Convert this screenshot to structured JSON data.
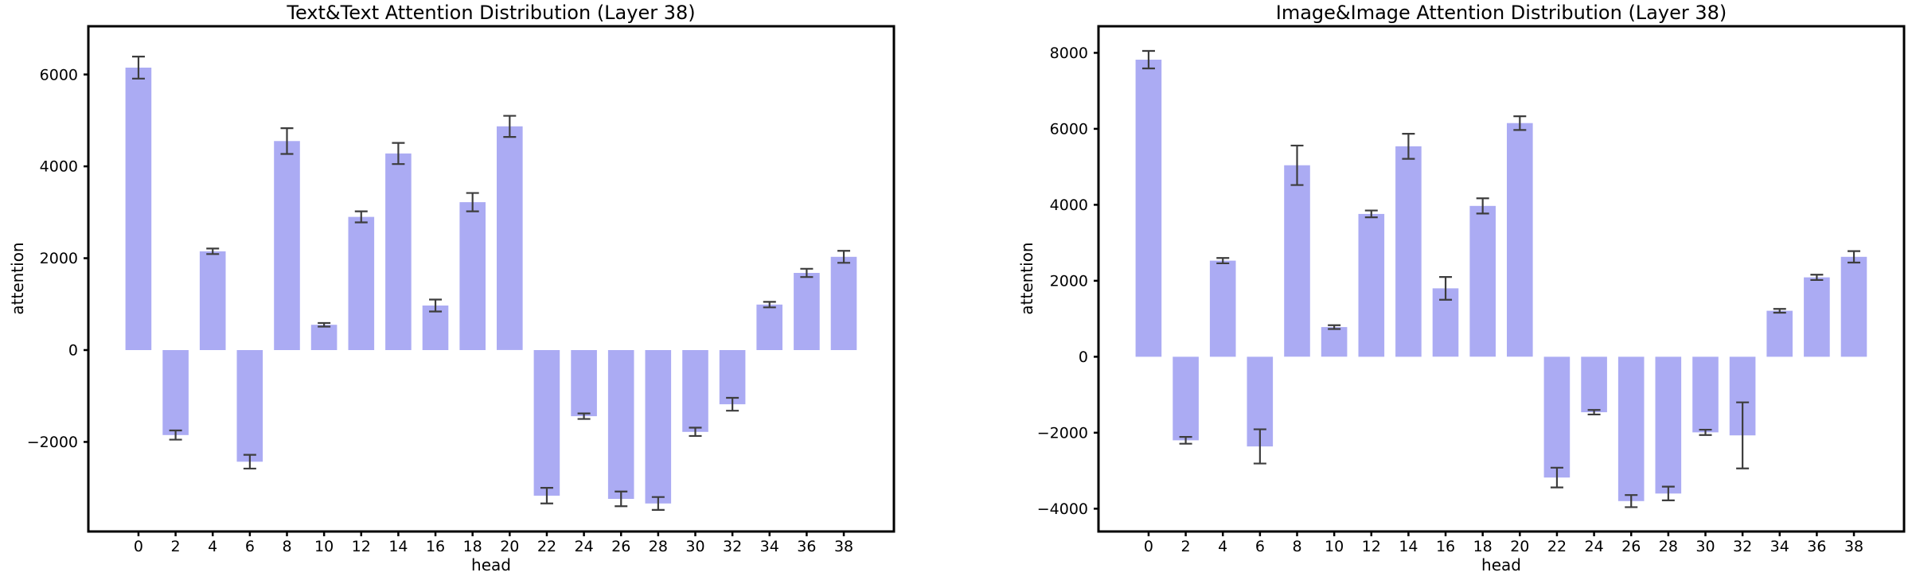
{
  "figure": {
    "background": "#ffffff",
    "text_color": "#000000"
  },
  "chart_data": [
    {
      "type": "bar",
      "title": "Text&Text Attention Distribution (Layer 38)",
      "xlabel": "head",
      "ylabel": "attention",
      "categories": [
        0,
        2,
        4,
        6,
        8,
        10,
        12,
        14,
        16,
        18,
        20,
        22,
        24,
        26,
        28,
        30,
        32,
        34,
        36,
        38
      ],
      "values": [
        6150,
        -1850,
        2150,
        -2430,
        4550,
        550,
        2900,
        4280,
        970,
        3220,
        4870,
        -3170,
        -1440,
        -3240,
        -3340,
        -1780,
        -1180,
        990,
        1680,
        2030
      ],
      "errors": [
        240,
        100,
        60,
        150,
        280,
        40,
        120,
        230,
        130,
        200,
        230,
        170,
        60,
        160,
        140,
        90,
        140,
        60,
        90,
        130
      ],
      "ylim": [
        -3950,
        7050
      ],
      "yticks": [
        -2000,
        0,
        2000,
        4000,
        6000
      ],
      "xlim": [
        -2.7,
        40.7
      ],
      "bar_width_units": 1.4,
      "bar_color": "#ababf3",
      "error_color": "#3d3d3d",
      "axis_color": "#000000",
      "grid": false,
      "legend": null
    },
    {
      "type": "bar",
      "title": "Image&Image Attention Distribution (Layer 38)",
      "xlabel": "head",
      "ylabel": "attention",
      "categories": [
        0,
        2,
        4,
        6,
        8,
        10,
        12,
        14,
        16,
        18,
        20,
        22,
        24,
        26,
        28,
        30,
        32,
        34,
        36,
        38
      ],
      "values": [
        7820,
        -2200,
        2530,
        -2360,
        5040,
        780,
        3760,
        5540,
        1800,
        3970,
        6150,
        -3180,
        -1460,
        -3800,
        -3600,
        -1990,
        -2070,
        1210,
        2090,
        2630
      ],
      "errors": [
        230,
        90,
        70,
        450,
        520,
        50,
        90,
        330,
        300,
        200,
        180,
        260,
        60,
        160,
        180,
        70,
        870,
        50,
        70,
        150
      ],
      "ylim": [
        -4600,
        8700
      ],
      "yticks": [
        -4000,
        -2000,
        0,
        2000,
        4000,
        6000,
        8000
      ],
      "xlim": [
        -2.7,
        40.7
      ],
      "bar_width_units": 1.4,
      "bar_color": "#ababf3",
      "error_color": "#3d3d3d",
      "axis_color": "#000000",
      "grid": false,
      "legend": null
    }
  ]
}
